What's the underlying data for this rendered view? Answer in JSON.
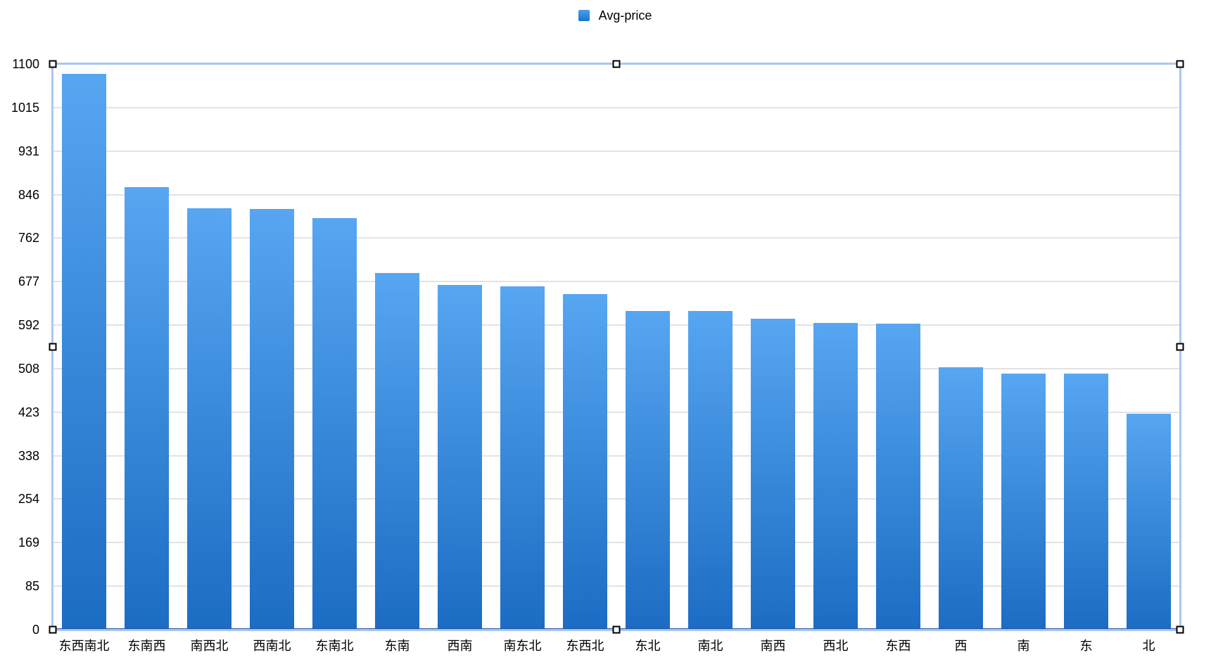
{
  "legend": {
    "label": "Avg-price",
    "swatch_color_top": "#4a9fe8",
    "swatch_color_bottom": "#1d74cd"
  },
  "chart_data": {
    "type": "bar",
    "title": "",
    "series_name": "Avg-price",
    "categories": [
      "东西南北",
      "东南西",
      "南西北",
      "西南北",
      "东南北",
      "东南",
      "西南",
      "南东北",
      "东西北",
      "东北",
      "南北",
      "南西",
      "西北",
      "东西",
      "西",
      "南",
      "东",
      "北"
    ],
    "values": [
      1081,
      860,
      820,
      818,
      800,
      694,
      670,
      667,
      652,
      620,
      620,
      605,
      596,
      595,
      511,
      498,
      498,
      420
    ],
    "xlabel": "",
    "ylabel": "",
    "ylim": [
      0,
      1100
    ],
    "yticks": [
      0,
      85,
      169,
      254,
      338,
      423,
      508,
      592,
      677,
      762,
      846,
      931,
      1015,
      1100
    ],
    "grid": true,
    "legend_position": "top-center",
    "bar_color_top": "#57a6f2",
    "bar_color_bottom": "#1b6cc3",
    "baseline_color": "#2a5199",
    "gridline_color": "#e3e3e3",
    "selection_frame_color": "#a9c7f3"
  },
  "selection": {
    "handles": [
      "top-left",
      "top-center",
      "top-right",
      "mid-left",
      "mid-right",
      "bottom-left",
      "bottom-center",
      "bottom-right"
    ]
  }
}
